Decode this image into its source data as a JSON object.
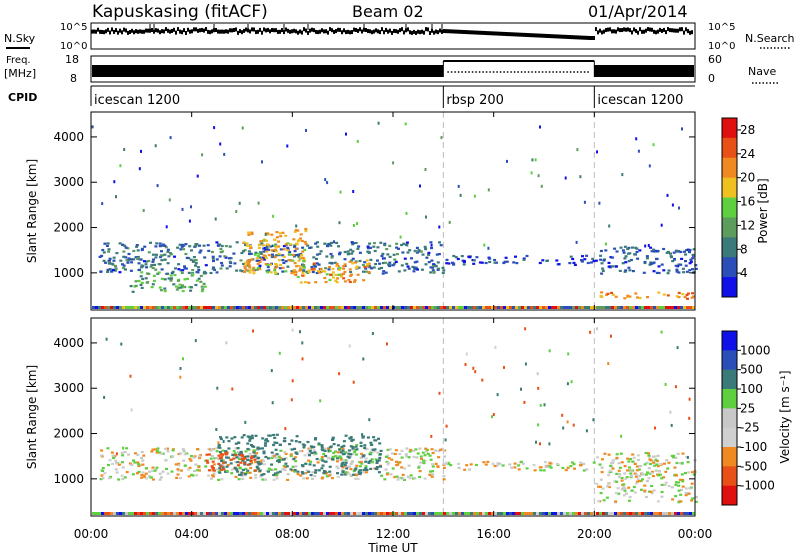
{
  "header": {
    "title": "Kapuskasing (fitACF)",
    "beam": "Beam 02",
    "date": "01/Apr/2014"
  },
  "summary_panels": {
    "nsky_label": "N.Sky",
    "nsky_ticks": [
      "10^5",
      "10^0"
    ],
    "nsearch_label": "N.Search",
    "nsearch_ticks": [
      "10^5",
      "10^0"
    ],
    "freq_label_1": "Freq.",
    "freq_label_2": "[MHz]",
    "freq_ticks": [
      "18",
      "8"
    ],
    "nave_label": "Nave",
    "nave_ticks": [
      "60",
      "0"
    ],
    "cpid_label": "CPID",
    "cpid_segments": [
      {
        "label": "icescan 1200",
        "start_h": 0,
        "end_h": 14
      },
      {
        "label": "rbsp 200",
        "start_h": 14,
        "end_h": 20
      },
      {
        "label": "icescan 1200",
        "start_h": 20,
        "end_h": 24
      }
    ]
  },
  "x_axis": {
    "label": "Time UT",
    "ticks": [
      "00:00",
      "04:00",
      "08:00",
      "12:00",
      "16:00",
      "20:00",
      "00:00"
    ]
  },
  "colors": {
    "power_scale": [
      "#1010e8",
      "#2a4fb8",
      "#3a7a78",
      "#5c9c5c",
      "#5ed040",
      "#f0c020",
      "#f08a20",
      "#e85018",
      "#e01010"
    ],
    "velocity_scale": [
      "#e01010",
      "#e85018",
      "#f08a20",
      "#d0d0d0",
      "#c8c8c8",
      "#5ed040",
      "#3a7a78",
      "#2a4fb8",
      "#1010e8"
    ]
  },
  "chart_data": [
    {
      "type": "heatmap",
      "title": "",
      "xlabel": "",
      "ylabel": "Slant Range [km]",
      "xlim": [
        0,
        24
      ],
      "ylim": [
        180,
        4550
      ],
      "y_ticks": [
        "1000",
        "2000",
        "3000",
        "4000"
      ],
      "colorbar": {
        "label": "Power [dB]",
        "ticks": [
          "4",
          "8",
          "12",
          "16",
          "20",
          "24",
          "28"
        ],
        "range": [
          0,
          30
        ]
      },
      "scatter_bands": [
        {
          "t0": 0.3,
          "t1": 14,
          "r0": 1000,
          "r1": 1700,
          "value": 7
        },
        {
          "t0": 1.5,
          "t1": 4.5,
          "r0": 600,
          "r1": 1050,
          "value": 12
        },
        {
          "t0": 6.0,
          "t1": 8.5,
          "r0": 1000,
          "r1": 2000,
          "value": 19
        },
        {
          "t0": 8.0,
          "t1": 11.0,
          "r0": 800,
          "r1": 1300,
          "value": 20
        },
        {
          "t0": 14,
          "t1": 20,
          "r0": 1200,
          "r1": 1400,
          "value": 5
        },
        {
          "t0": 20,
          "t1": 24,
          "r0": 1000,
          "r1": 1600,
          "value": 6
        },
        {
          "t0": 20,
          "t1": 24,
          "r0": 450,
          "r1": 600,
          "value": 22
        }
      ]
    },
    {
      "type": "heatmap",
      "title": "",
      "xlabel": "Time UT",
      "ylabel": "Slant Range [km]",
      "xlim": [
        0,
        24
      ],
      "ylim": [
        180,
        4550
      ],
      "y_ticks": [
        "1000",
        "2000",
        "3000",
        "4000"
      ],
      "colorbar": {
        "label": "Velocity [m s⁻¹]",
        "ticks": [
          "1000",
          "500",
          "100",
          "25",
          "-25",
          "-100",
          "-500",
          "-1000"
        ],
        "range": [
          -1200,
          1200
        ]
      },
      "scatter_bands": [
        {
          "t0": 0.3,
          "t1": 14,
          "r0": 1000,
          "r1": 1700,
          "value": 0
        },
        {
          "t0": 5.0,
          "t1": 11.5,
          "r0": 1100,
          "r1": 2000,
          "value": 150
        },
        {
          "t0": 4.5,
          "t1": 6.5,
          "r0": 1200,
          "r1": 1600,
          "value": -300
        },
        {
          "t0": 14,
          "t1": 20,
          "r0": 1200,
          "r1": 1400,
          "value": 0
        },
        {
          "t0": 20,
          "t1": 24,
          "r0": 500,
          "r1": 1600,
          "value": 0
        }
      ]
    }
  ]
}
